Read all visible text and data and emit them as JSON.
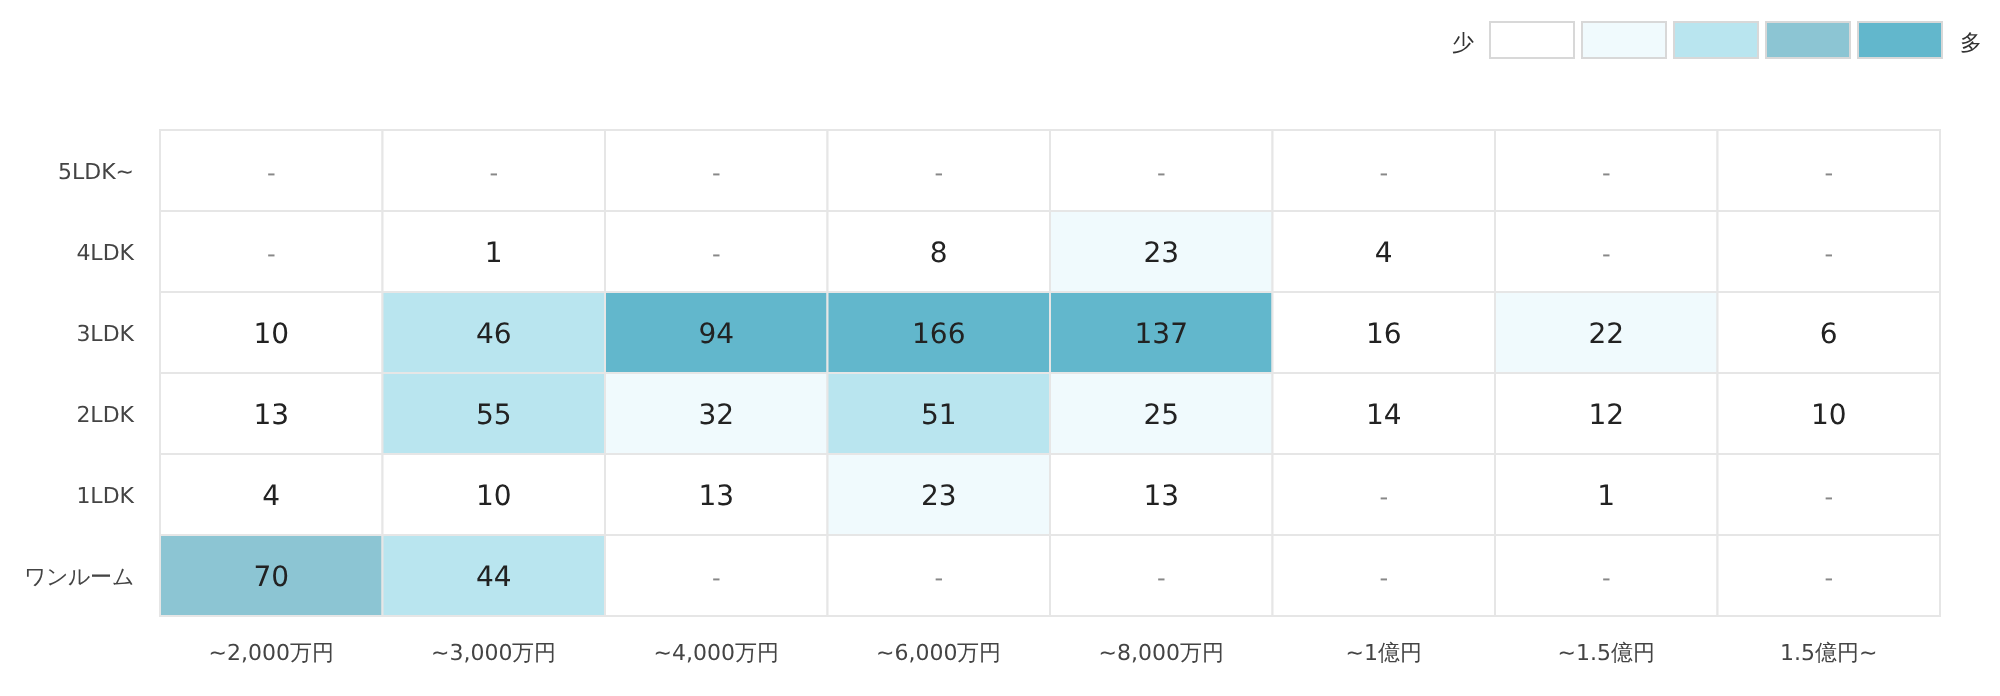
{
  "chart_data": {
    "type": "heatmap",
    "categories": [
      "~2,000万円",
      "~3,000万円",
      "~4,000万円",
      "~6,000万円",
      "~8,000万円",
      "~1億円",
      "~1.5億円",
      "1.5億円~"
    ],
    "y_categories": [
      "5LDK~",
      "4LDK",
      "3LDK",
      "2LDK",
      "1LDK",
      "ワンルーム"
    ],
    "cells": [
      [
        null,
        null,
        null,
        null,
        null,
        null,
        null,
        null
      ],
      [
        null,
        1,
        null,
        8,
        23,
        4,
        null,
        null
      ],
      [
        10,
        46,
        94,
        166,
        137,
        16,
        22,
        6
      ],
      [
        13,
        55,
        32,
        51,
        25,
        14,
        12,
        10
      ],
      [
        4,
        10,
        13,
        23,
        13,
        null,
        1,
        null
      ],
      [
        70,
        44,
        null,
        null,
        null,
        null,
        null,
        null
      ]
    ],
    "cell_labels": [
      [
        "-",
        "-",
        "-",
        "-",
        "-",
        "-",
        "-",
        "-"
      ],
      [
        "-",
        "1",
        "-",
        "8",
        "23",
        "4",
        "-",
        "-"
      ],
      [
        "10",
        "46",
        "94",
        "166",
        "137",
        "16",
        "22",
        "6"
      ],
      [
        "13",
        "55",
        "32",
        "51",
        "25",
        "14",
        "12",
        "10"
      ],
      [
        "4",
        "10",
        "13",
        "23",
        "13",
        "-",
        "1",
        "-"
      ],
      [
        "70",
        "44",
        "-",
        "-",
        "-",
        "-",
        "-",
        "-"
      ]
    ],
    "colors": [
      [
        "#ffffff",
        "#ffffff",
        "#ffffff",
        "#ffffff",
        "#ffffff",
        "#ffffff",
        "#ffffff",
        "#ffffff"
      ],
      [
        "#ffffff",
        "#ffffff",
        "#ffffff",
        "#ffffff",
        "#f0fafd",
        "#ffffff",
        "#ffffff",
        "#ffffff"
      ],
      [
        "#ffffff",
        "#b9e5ef",
        "#62b7cc",
        "#62b7cc",
        "#62b7cc",
        "#ffffff",
        "#f0fafd",
        "#ffffff"
      ],
      [
        "#ffffff",
        "#b9e5ef",
        "#f0fafd",
        "#b9e5ef",
        "#f0fafd",
        "#ffffff",
        "#ffffff",
        "#ffffff"
      ],
      [
        "#ffffff",
        "#ffffff",
        "#ffffff",
        "#f0fafd",
        "#ffffff",
        "#ffffff",
        "#ffffff",
        "#ffffff"
      ],
      [
        "#8cc5d3",
        "#b9e5ef",
        "#ffffff",
        "#ffffff",
        "#ffffff",
        "#ffffff",
        "#ffffff",
        "#ffffff"
      ]
    ],
    "annotations": [
      "少",
      "多"
    ]
  }
}
